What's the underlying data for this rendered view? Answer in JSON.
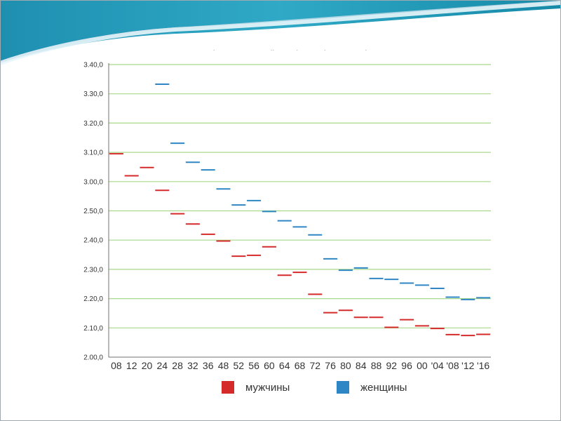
{
  "colors": {
    "men": "#d42a2a",
    "women": "#2f86c4",
    "grid": "#a8d88a",
    "axis": "#707070",
    "text": "#333333"
  },
  "chart_data": {
    "type": "line",
    "title": "200 м. Результат победителя олимпийского финала (1908—2012)",
    "xlabel": "",
    "ylabel": "",
    "grid": true,
    "legend_position": "bottom",
    "y_unit": "seconds",
    "ylim": [
      120,
      220
    ],
    "y_ticks": [
      {
        "value": 220,
        "label": "3.40,0"
      },
      {
        "value": 210,
        "label": "3.30,0"
      },
      {
        "value": 200,
        "label": "3.20,0"
      },
      {
        "value": 190,
        "label": "3.10,0"
      },
      {
        "value": 180,
        "label": "3.00,0"
      },
      {
        "value": 170,
        "label": "2.50,0"
      },
      {
        "value": 160,
        "label": "2.40,0"
      },
      {
        "value": 150,
        "label": "2.30,0"
      },
      {
        "value": 140,
        "label": "2.20,0"
      },
      {
        "value": 130,
        "label": "2.10,0"
      },
      {
        "value": 120,
        "label": "2.00,0"
      }
    ],
    "categories": [
      "08",
      "12",
      "20",
      "24",
      "28",
      "32",
      "36",
      "48",
      "52",
      "56",
      "60",
      "64",
      "68",
      "72",
      "76",
      "80",
      "84",
      "88",
      "92",
      "96",
      "00",
      "'04",
      "'08",
      "'12",
      "'16"
    ],
    "series": [
      {
        "name": "мужчины",
        "values": [
          189.5,
          182.0,
          184.8,
          177.0,
          169.0,
          165.5,
          162.0,
          159.7,
          154.5,
          154.8,
          157.7,
          148.0,
          149.0,
          141.5,
          135.2,
          136.0,
          133.6,
          133.6,
          130.2,
          132.8,
          130.7,
          129.8,
          127.7,
          127.4,
          127.8
        ]
      },
      {
        "name": "женщины",
        "values": [
          null,
          null,
          null,
          213.3,
          193.1,
          186.6,
          184.0,
          177.5,
          172.0,
          173.5,
          169.8,
          166.6,
          164.5,
          161.8,
          153.6,
          149.7,
          150.5,
          146.9,
          146.6,
          145.3,
          144.6,
          143.5,
          140.5,
          139.7,
          140.3
        ]
      }
    ]
  },
  "legend": {
    "men_label": "мужчины",
    "women_label": "женщины"
  }
}
